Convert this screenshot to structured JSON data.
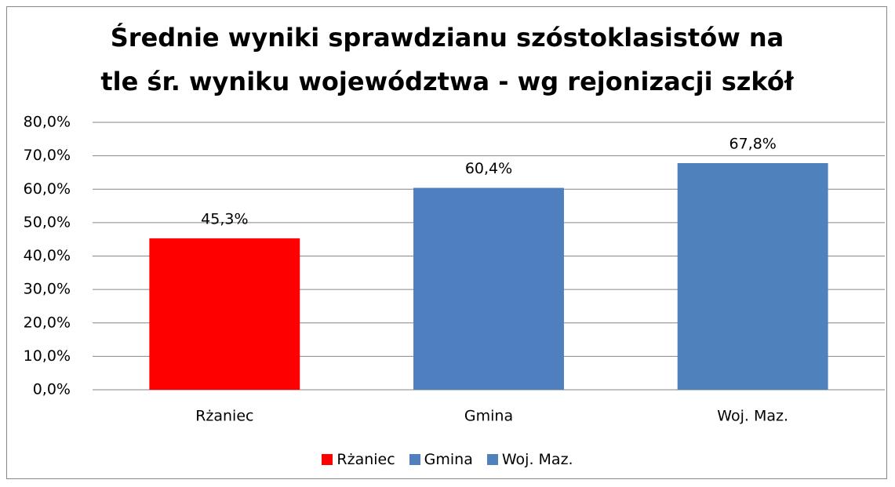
{
  "chart_data": {
    "type": "bar",
    "title": "Średnie wyniki sprawdzianu szóstoklasistów na tle śr. wyniku województwa - wg rejonizacji szkół",
    "categories": [
      "Rżaniec",
      "Gmina",
      "Woj. Maz."
    ],
    "values": [
      45.3,
      60.4,
      67.8
    ],
    "value_labels": [
      "45,3%",
      "60,4%",
      "67,8%"
    ],
    "colors": [
      "#ff0000",
      "#4f7fbf",
      "#4f81bd"
    ],
    "ylim": [
      0,
      80
    ],
    "yticks": [
      {
        "value": 0,
        "label": "0,0%"
      },
      {
        "value": 10,
        "label": "10,0%"
      },
      {
        "value": 20,
        "label": "20,0%"
      },
      {
        "value": 30,
        "label": "30,0%"
      },
      {
        "value": 40,
        "label": "40,0%"
      },
      {
        "value": 50,
        "label": "50,0%"
      },
      {
        "value": 60,
        "label": "60,0%"
      },
      {
        "value": 70,
        "label": "70,0%"
      },
      {
        "value": 80,
        "label": "80,0%"
      }
    ],
    "grid": true,
    "legend": "bottom"
  }
}
